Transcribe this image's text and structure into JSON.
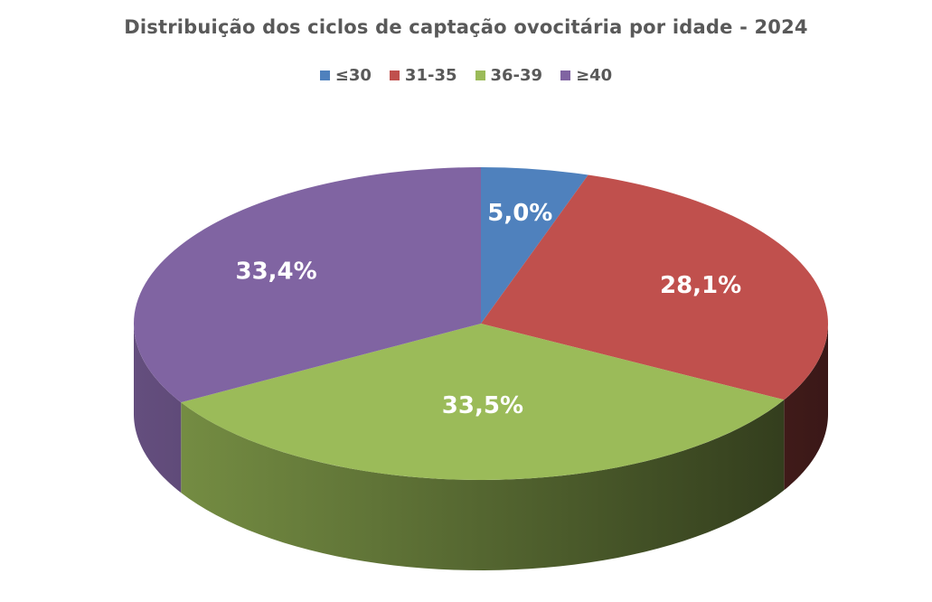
{
  "chart_data": {
    "type": "pie",
    "title": "Distribuição dos ciclos de captação ovocitária por idade - 2024",
    "categories": [
      "≤30",
      "31-35",
      "36-39",
      "≥40"
    ],
    "values": [
      5.0,
      28.1,
      33.5,
      33.4
    ],
    "data_labels": [
      "5,0%",
      "28,1%",
      "33,5%",
      "33,4%"
    ],
    "colors": [
      "#4F81BD",
      "#C0504D",
      "#9BBB59",
      "#8064A2"
    ],
    "legend_position": "top",
    "style": "3d"
  }
}
